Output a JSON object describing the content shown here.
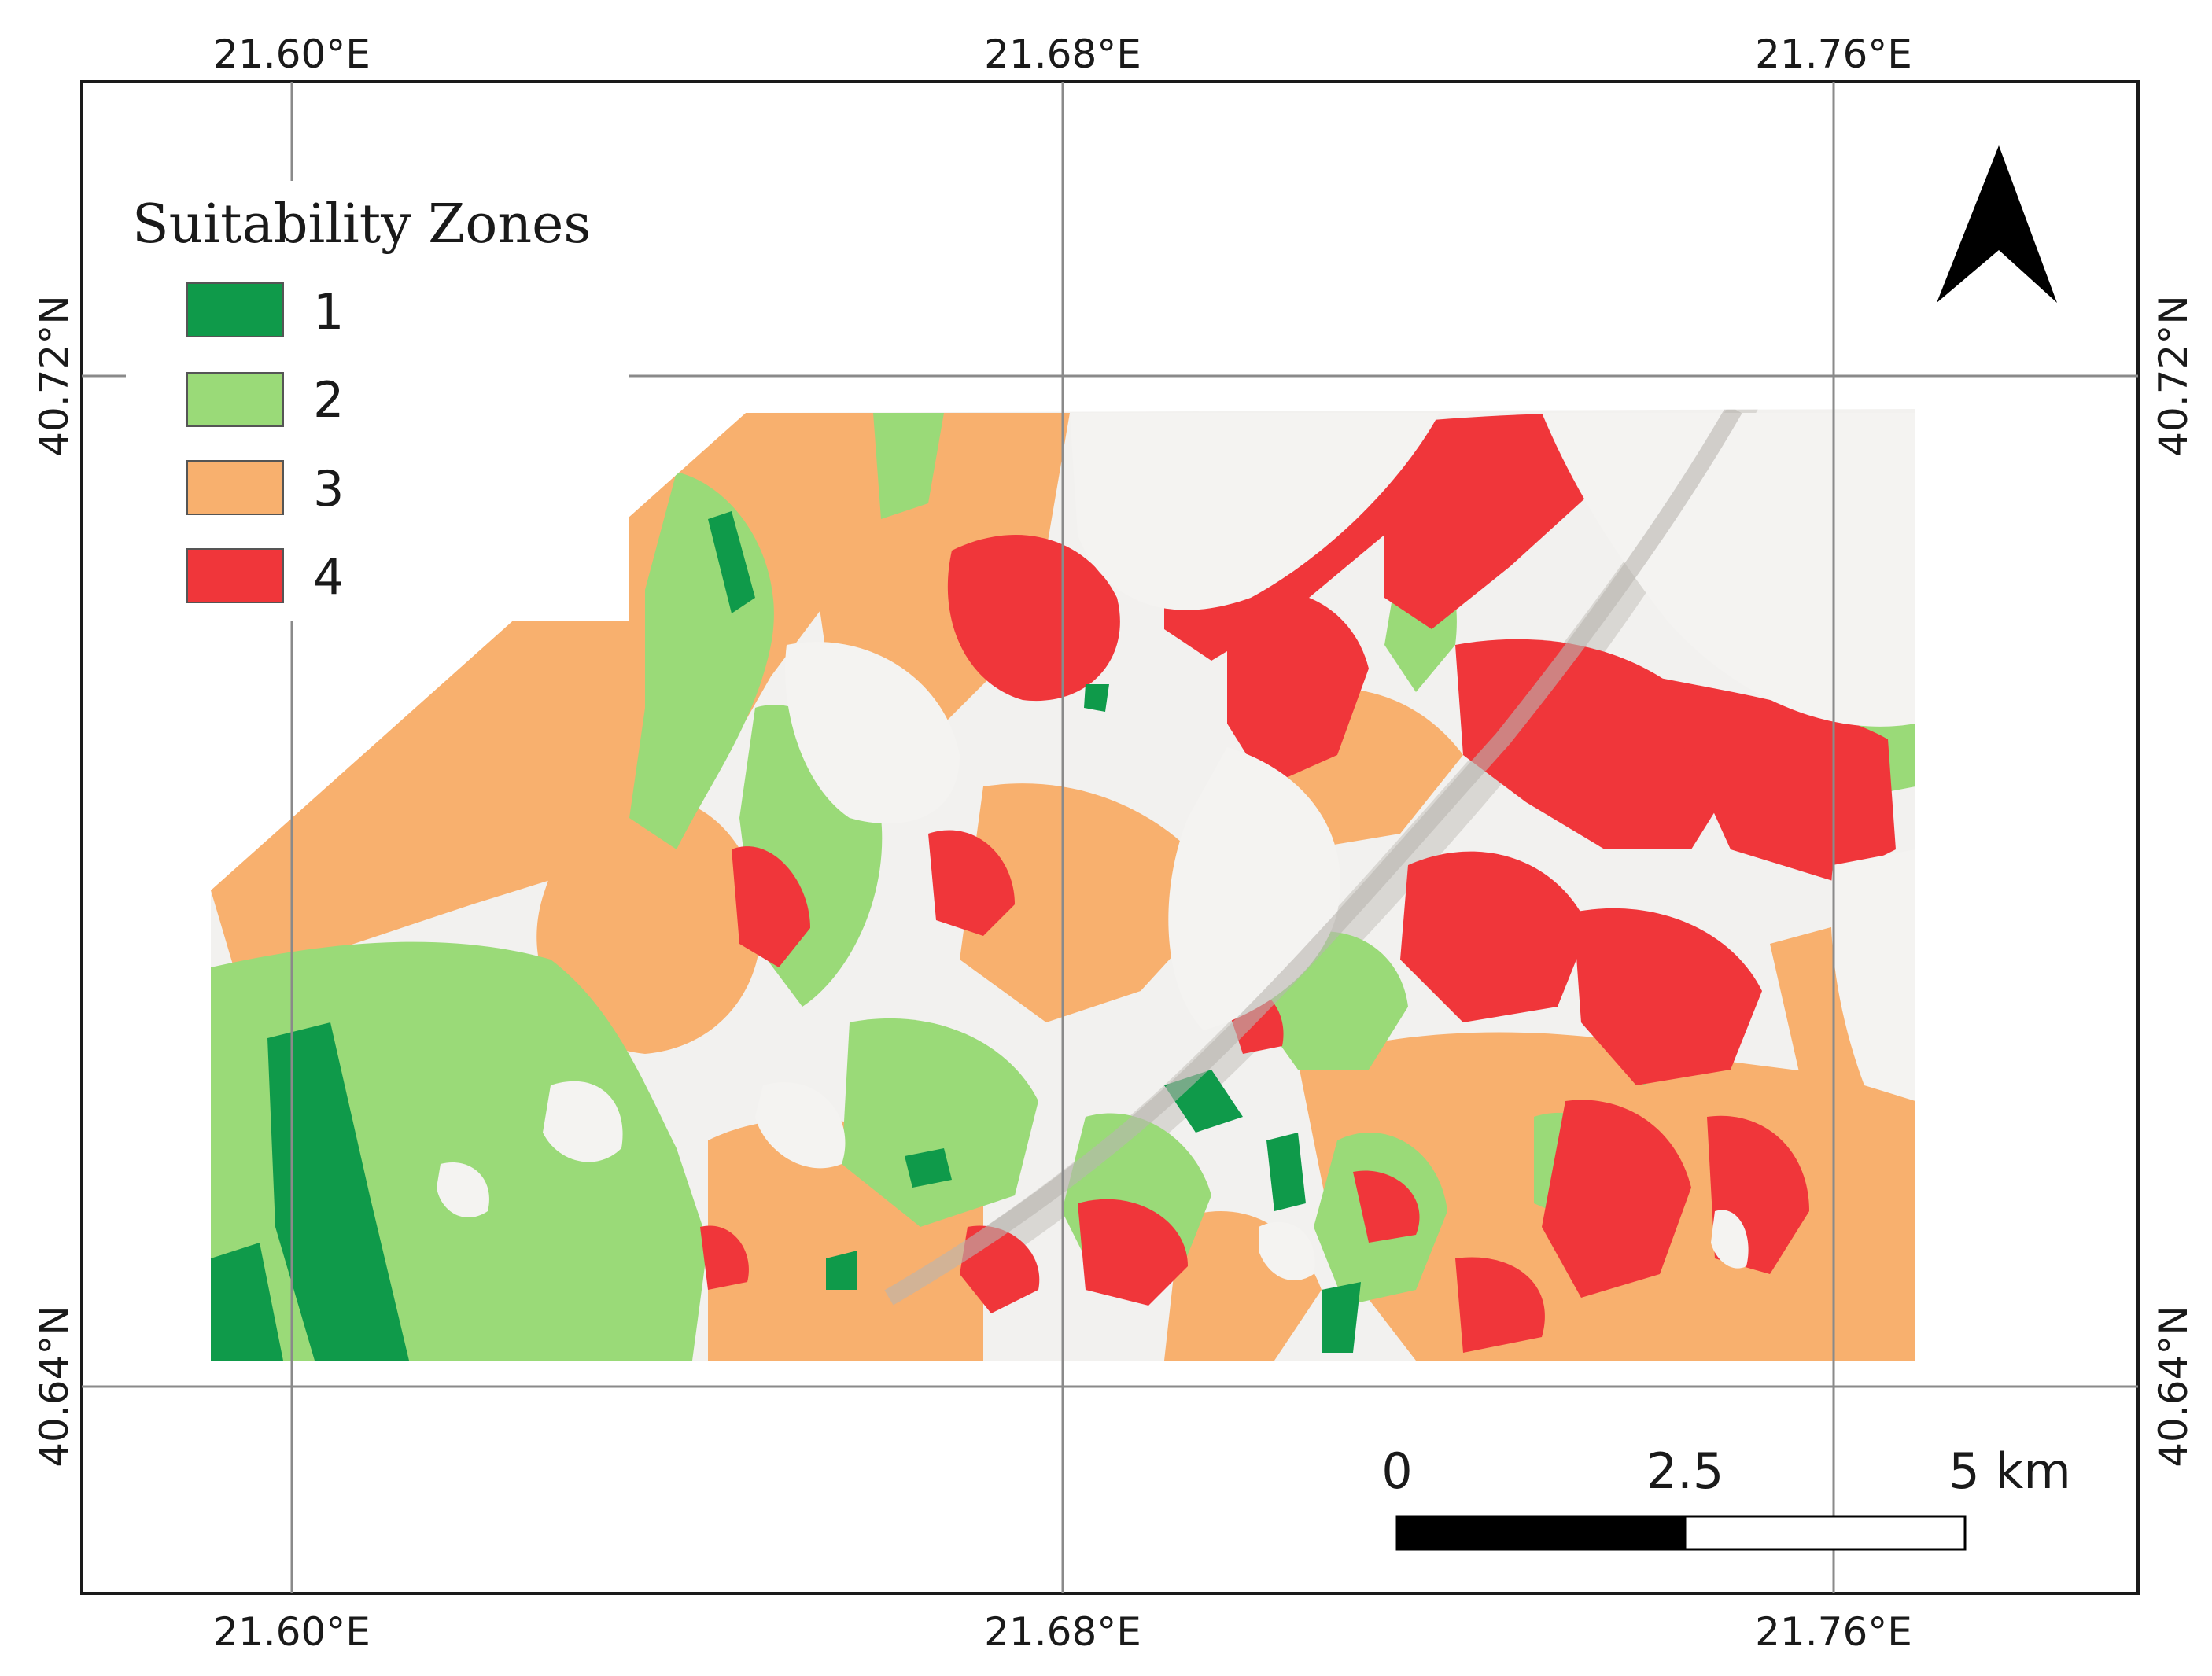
{
  "legend": {
    "title": "Suitability Zones",
    "items": [
      {
        "label": "1",
        "color": "#0f9a4a"
      },
      {
        "label": "2",
        "color": "#9ada78"
      },
      {
        "label": "3",
        "color": "#f8b06e"
      },
      {
        "label": "4",
        "color": "#f0363a"
      }
    ]
  },
  "graticule": {
    "longitudes": [
      "21.60°E",
      "21.68°E",
      "21.76°E"
    ],
    "latitudes": [
      "40.72°N",
      "40.64°N"
    ]
  },
  "scalebar": {
    "labels": [
      "0",
      "2.5",
      "5 km"
    ]
  },
  "north_arrow": {
    "icon": "north-arrow-icon"
  },
  "colors": {
    "frame": "#1a1a1a",
    "grid": "#8a8a8a",
    "hillshade": "#f2f1ef",
    "hillshade_dark": "#cfccc8"
  }
}
